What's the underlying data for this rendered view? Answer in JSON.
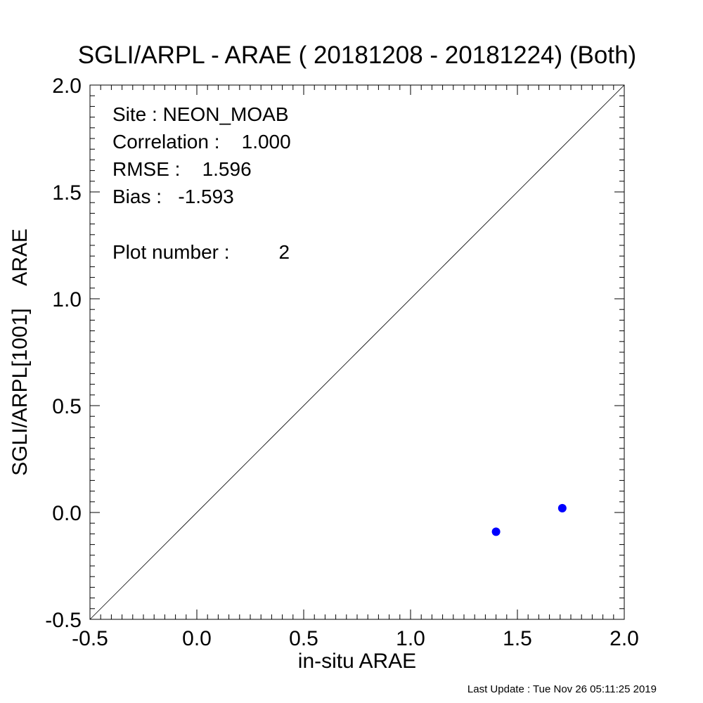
{
  "chart_data": {
    "type": "scatter",
    "title": "SGLI/ARPL - ARAE ( 20181208 - 20181224) (Both)",
    "xlabel": "in-situ ARAE",
    "ylabel": "SGLI/ARPL[1001]    ARAE",
    "xlim": [
      -0.5,
      2.0
    ],
    "ylim": [
      -0.5,
      2.0
    ],
    "x_ticks": [
      "-0.5",
      "0.0",
      "0.5",
      "1.0",
      "1.5",
      "2.0"
    ],
    "y_ticks": [
      "-0.5",
      "0.0",
      "0.5",
      "1.0",
      "1.5",
      "2.0"
    ],
    "points": [
      {
        "x": 1.4,
        "y": -0.09
      },
      {
        "x": 1.71,
        "y": 0.02
      }
    ],
    "point_color": "#0000ff",
    "reference_line": "1:1",
    "grid": false,
    "annotations": {
      "site": "Site : NEON_MOAB",
      "correlation": "Correlation :    1.000",
      "rmse": "RMSE :    1.596",
      "bias": "Bias :   -1.593",
      "plot_number": "Plot number :         2"
    }
  },
  "footer": {
    "last_update": "Last Update : Tue Nov 26 05:11:25 2019"
  }
}
